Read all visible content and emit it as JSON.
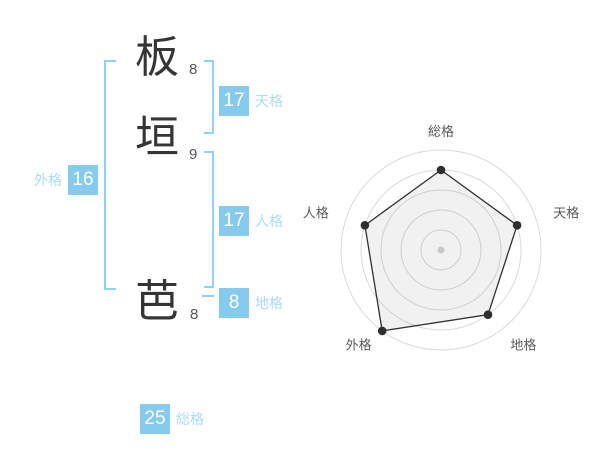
{
  "name": {
    "characters": [
      {
        "char": "板",
        "strokes": "8"
      },
      {
        "char": "垣",
        "strokes": "9"
      },
      {
        "char": "芭",
        "strokes": "8"
      }
    ]
  },
  "scores": {
    "tenkaku": {
      "label": "天格",
      "value": "17"
    },
    "jinkaku": {
      "label": "人格",
      "value": "17"
    },
    "chikaku": {
      "label": "地格",
      "value": "8"
    },
    "gaikaku": {
      "label": "外格",
      "value": "16"
    },
    "soukaku": {
      "label": "総格",
      "value": "25"
    }
  },
  "colors": {
    "accent_box": "#86cbee",
    "bracket": "#93d0f2",
    "score_label": "#aadcf6",
    "kanji_text": "#353535",
    "stroke_number": "#555555"
  },
  "chart_data": {
    "type": "radar",
    "categories": [
      "総格",
      "天格",
      "地格",
      "外格",
      "人格"
    ],
    "values": [
      4,
      4,
      4,
      5,
      4
    ],
    "max": 5,
    "rings": 5,
    "grid_shape": "circular",
    "start_angle_deg": -90,
    "direction": "clockwise",
    "legend": "none",
    "colors": {
      "ring": "#dadada",
      "line": "#2f2f2f",
      "fill": "rgba(0,0,0,0.055)",
      "vertex": "#2f2f2f",
      "center_dot": "#c9c9c9",
      "label": "#595959"
    }
  }
}
